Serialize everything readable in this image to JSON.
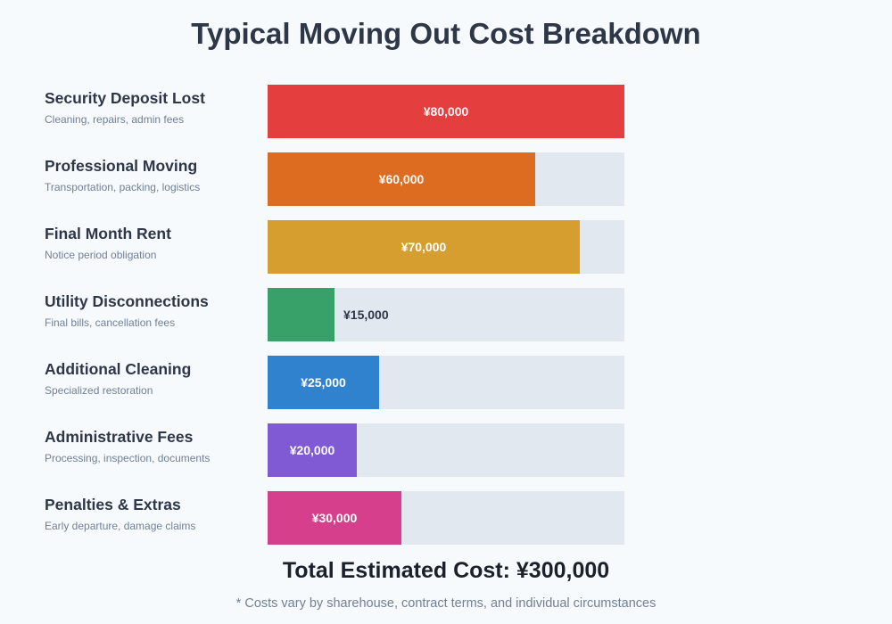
{
  "title": "Typical Moving Out Cost Breakdown",
  "chart_data": {
    "type": "bar",
    "orientation": "horizontal",
    "title": "Typical Moving Out Cost Breakdown",
    "xlim": [
      0,
      80000
    ],
    "currency": "¥",
    "categories": [
      "Security Deposit Lost",
      "Professional Moving",
      "Final Month Rent",
      "Utility Disconnections",
      "Additional Cleaning",
      "Administrative Fees",
      "Penalties & Extras"
    ],
    "descriptions": [
      "Cleaning, repairs, admin fees",
      "Transportation, packing, logistics",
      "Notice period obligation",
      "Final bills, cancellation fees",
      "Specialized restoration",
      "Processing, inspection, documents",
      "Early departure, damage claims"
    ],
    "values": [
      80000,
      60000,
      70000,
      15000,
      25000,
      20000,
      30000
    ],
    "value_labels": [
      "¥80,000",
      "¥60,000",
      "¥70,000",
      "¥15,000",
      "¥25,000",
      "¥20,000",
      "¥30,000"
    ],
    "colors": [
      "#e53e3e",
      "#dd6b20",
      "#d69e2e",
      "#38a169",
      "#3182ce",
      "#805ad5",
      "#d53f8c"
    ],
    "track_color": "#e2e8f0"
  },
  "total": "Total Estimated Cost: ¥300,000",
  "note": "* Costs vary by sharehouse, contract terms, and individual circumstances"
}
